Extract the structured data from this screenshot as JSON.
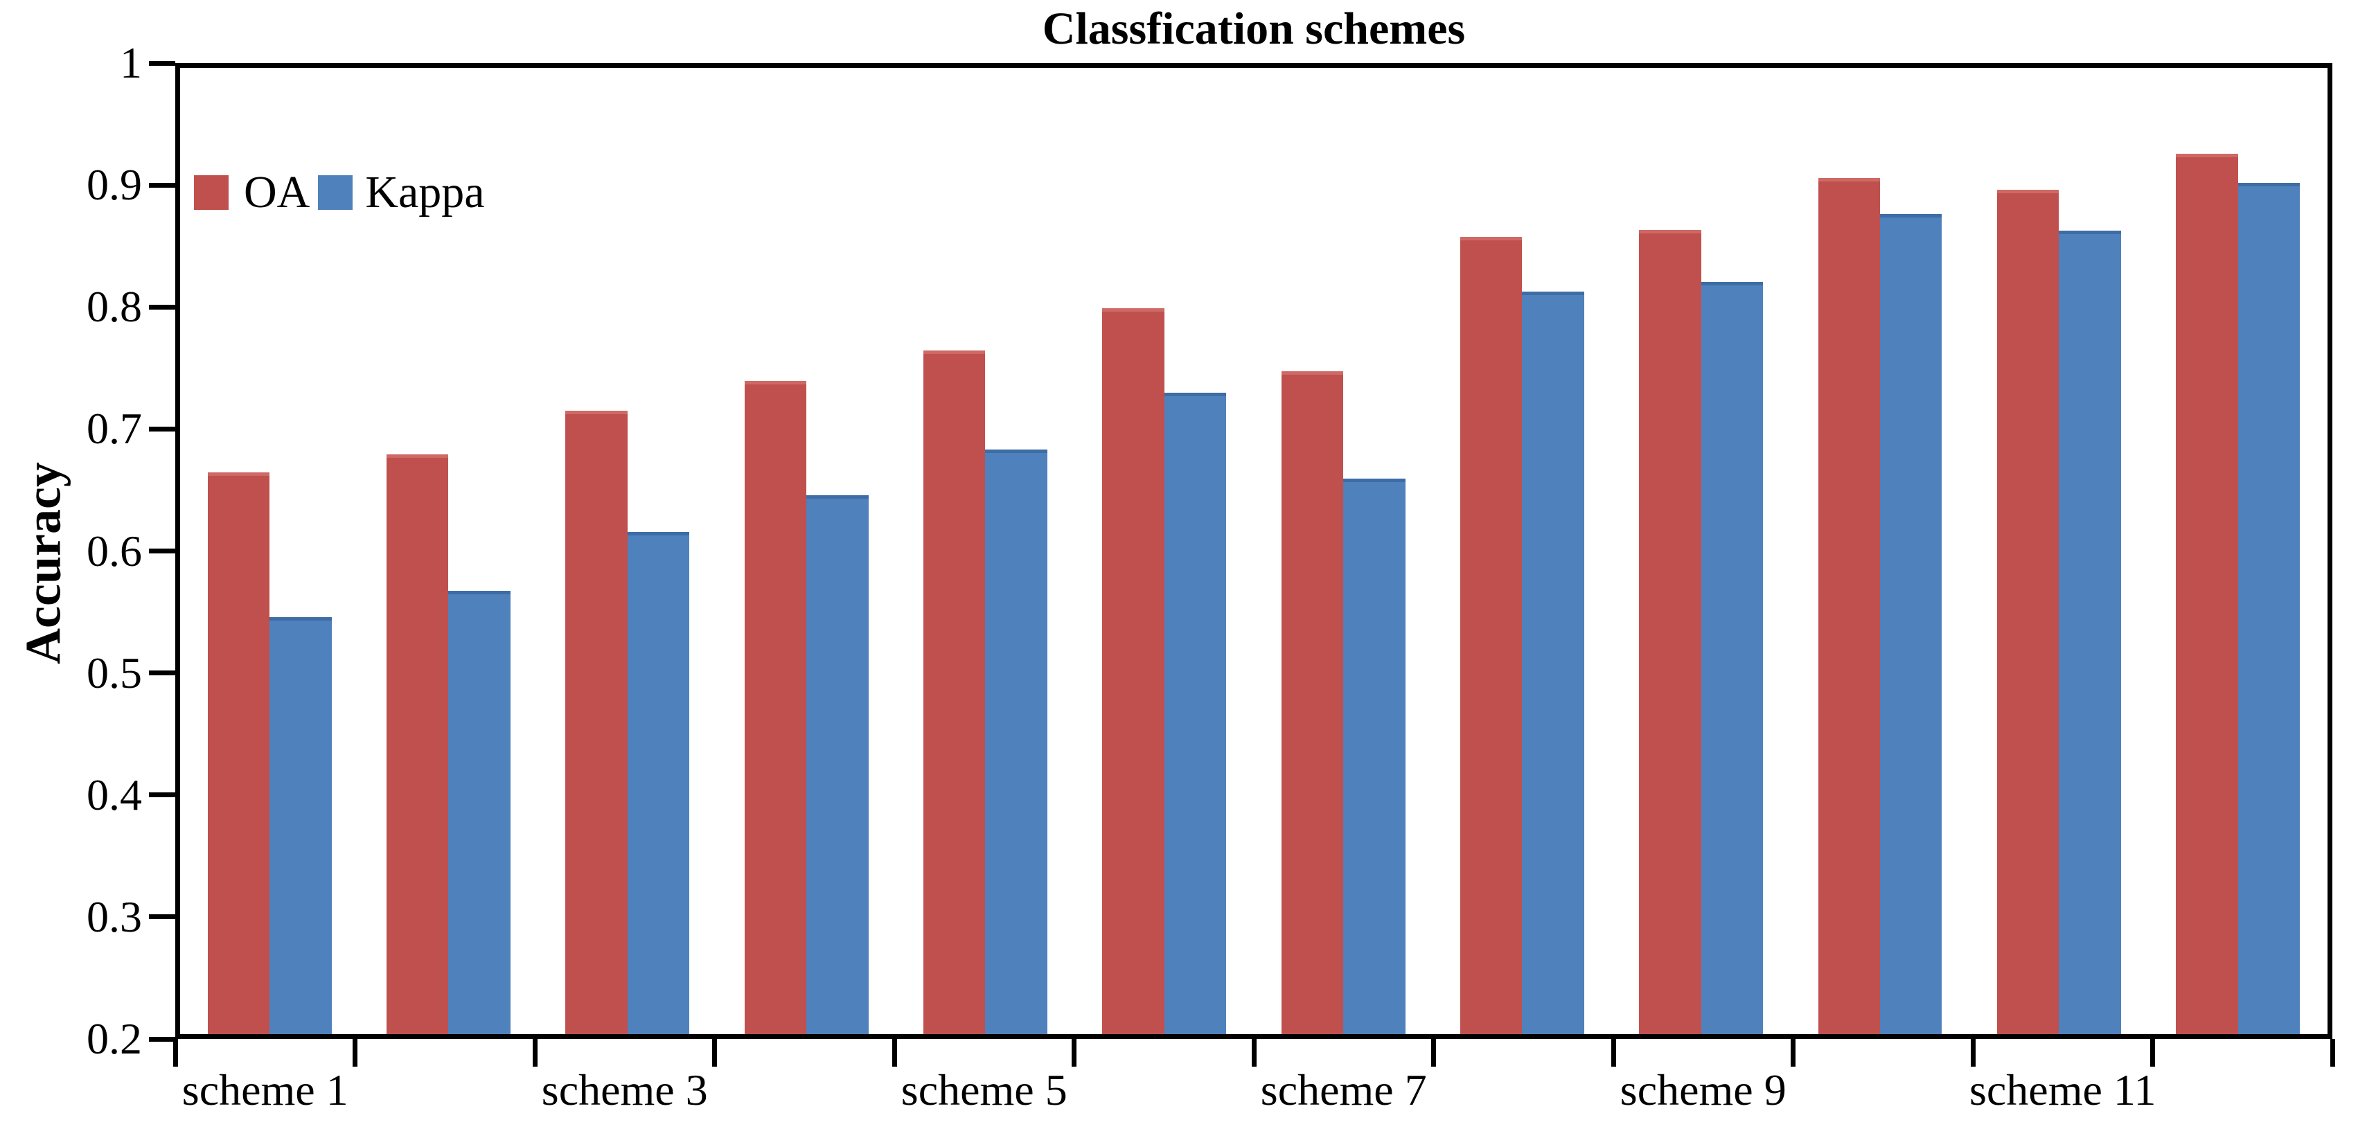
{
  "chart_data": {
    "type": "bar",
    "title": "Classfication schemes",
    "ylabel": "Accuracy",
    "xlabel": "",
    "ylim": [
      0.2,
      1.0
    ],
    "y_tick_labels": [
      "1",
      "0.9",
      "0.8",
      "0.7",
      "0.6",
      "0.5",
      "0.4",
      "0.3",
      "0.2"
    ],
    "y_tick_values": [
      1.0,
      0.9,
      0.8,
      0.7,
      0.6,
      0.5,
      0.4,
      0.3,
      0.2
    ],
    "n_groups": 12,
    "x_tick_labels": [
      "scheme 1",
      "scheme 3",
      "scheme 5",
      "scheme 7",
      "scheme 9",
      "scheme 11"
    ],
    "labeled_group_indices": [
      0,
      2,
      4,
      6,
      8,
      10
    ],
    "series": [
      {
        "name": "OA",
        "color": "#C0504D",
        "values": [
          0.665,
          0.68,
          0.716,
          0.741,
          0.766,
          0.801,
          0.749,
          0.86,
          0.866,
          0.909,
          0.899,
          0.929
        ]
      },
      {
        "name": "Kappa",
        "color": "#4F81BD",
        "values": [
          0.545,
          0.567,
          0.616,
          0.646,
          0.684,
          0.731,
          0.66,
          0.815,
          0.823,
          0.879,
          0.865,
          0.905
        ]
      }
    ],
    "legend_position": "top-left-inside",
    "grid": false,
    "axis_color": "#000000",
    "background_color": "#FFFFFF"
  }
}
